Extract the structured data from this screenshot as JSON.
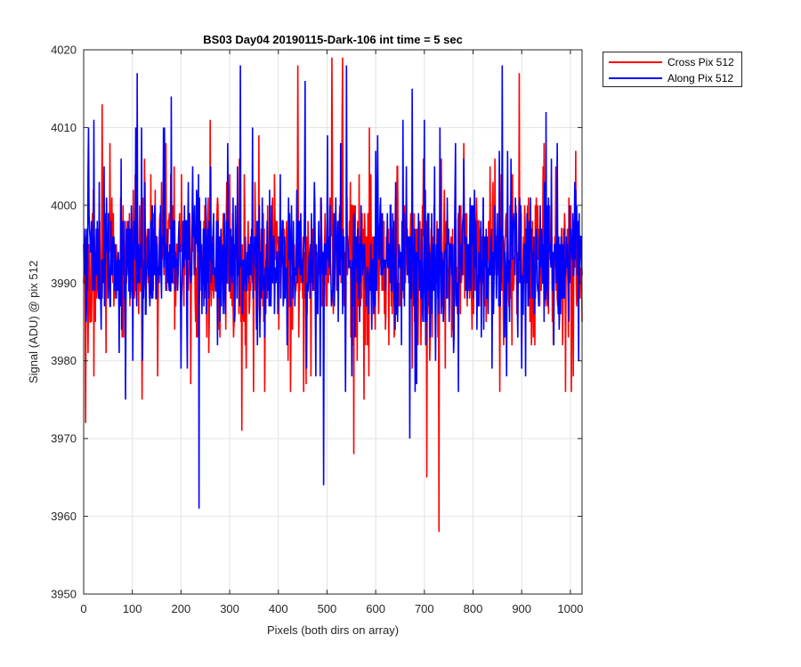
{
  "chart_data": {
    "type": "line",
    "title": "BS03 Day04 20190115-Dark-106 int time = 5 sec",
    "xlabel": "Pixels (both dirs on array)",
    "ylabel": "Signal (ADU) @ pix 512",
    "xlim": [
      0,
      1024
    ],
    "ylim": [
      3950,
      4020
    ],
    "xticks": [
      0,
      100,
      200,
      300,
      400,
      500,
      600,
      700,
      800,
      900,
      1000
    ],
    "yticks": [
      3950,
      3960,
      3970,
      3980,
      3990,
      4000,
      4010,
      4020
    ],
    "grid": true,
    "legend_position": "outside-top-right",
    "series": [
      {
        "name": "Cross Pix 512",
        "color": "#ff0000",
        "stats": {
          "min": 3958,
          "max": 4019,
          "typical_range": [
            3983,
            4003
          ],
          "mean_approx": 3993
        },
        "extremes": [
          {
            "x": 4,
            "y": 3972
          },
          {
            "x": 38,
            "y": 4013
          },
          {
            "x": 120,
            "y": 3975
          },
          {
            "x": 258,
            "y": 3985
          },
          {
            "x": 260,
            "y": 4011
          },
          {
            "x": 325,
            "y": 3971
          },
          {
            "x": 425,
            "y": 3976
          },
          {
            "x": 440,
            "y": 4018
          },
          {
            "x": 510,
            "y": 4019
          },
          {
            "x": 532,
            "y": 4019
          },
          {
            "x": 555,
            "y": 3968
          },
          {
            "x": 705,
            "y": 3965
          },
          {
            "x": 730,
            "y": 3958
          },
          {
            "x": 895,
            "y": 4017
          }
        ]
      },
      {
        "name": "Along Pix 512",
        "color": "#0000ff",
        "stats": {
          "min": 3961,
          "max": 4018,
          "typical_range": [
            3984,
            4004
          ],
          "mean_approx": 3993
        },
        "extremes": [
          {
            "x": 10,
            "y": 4010
          },
          {
            "x": 110,
            "y": 4017
          },
          {
            "x": 180,
            "y": 4014
          },
          {
            "x": 237,
            "y": 3961
          },
          {
            "x": 322,
            "y": 4018
          },
          {
            "x": 455,
            "y": 4016
          },
          {
            "x": 493,
            "y": 3964
          },
          {
            "x": 540,
            "y": 4018
          },
          {
            "x": 670,
            "y": 3970
          },
          {
            "x": 675,
            "y": 4015
          },
          {
            "x": 860,
            "y": 4018
          },
          {
            "x": 950,
            "y": 4012
          }
        ]
      }
    ]
  }
}
